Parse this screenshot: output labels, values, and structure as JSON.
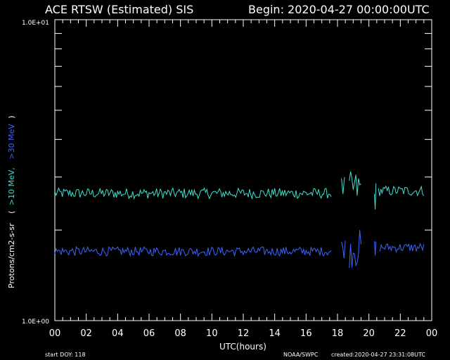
{
  "header": {
    "title": "ACE RTSW (Estimated) SIS",
    "begin": "Begin: 2020-04-27 00:00:00UTC"
  },
  "footer": {
    "start_doy": "start DOY:  118",
    "source": "NOAA/SWPC",
    "created": "created:2020-04-27 23:31:08UTC"
  },
  "axis_text": {
    "ylabel_main": "Protons/cm2-s-sr",
    "ylabel_open": "(",
    "ylabel_10": ">10 MeV,",
    "ylabel_30": ">30 MeV",
    "ylabel_close": ")",
    "ytick_top": "1.0E+01",
    "ytick_bottom": "1.0E+00",
    "xlabel": "UTC(hours)"
  },
  "colors": {
    "background": "#000000",
    "foreground": "#ffffff",
    "series_10mev": "#40e0d0",
    "series_30mev": "#3c64ff"
  },
  "chart_data": {
    "type": "line",
    "title": "ACE RTSW (Estimated) SIS",
    "xlabel": "UTC(hours)",
    "ylabel": "Protons/cm2-s-sr",
    "yscale": "log",
    "ylim": [
      1.0,
      10.0
    ],
    "xlim": [
      0,
      24
    ],
    "xticks": [
      "00",
      "02",
      "04",
      "06",
      "08",
      "10",
      "12",
      "14",
      "16",
      "18",
      "20",
      "22",
      "00"
    ],
    "series": [
      {
        "name": ">10 MeV",
        "color": "#40e0d0",
        "segments": [
          {
            "start": 0.0,
            "end": 17.6,
            "level": 2.65,
            "jitter": 0.04
          },
          {
            "start": 18.25,
            "end": 18.45,
            "level": 2.75,
            "jitter": 0.1
          },
          {
            "start": 18.75,
            "end": 19.5,
            "level": 2.75,
            "jitter": 0.14
          },
          {
            "start": 20.35,
            "end": 20.45,
            "level": 2.6,
            "jitter": 0.12
          },
          {
            "start": 20.6,
            "end": 23.5,
            "level": 2.7,
            "jitter": 0.04
          }
        ]
      },
      {
        "name": ">30 MeV",
        "color": "#3c64ff",
        "segments": [
          {
            "start": 0.0,
            "end": 17.6,
            "level": 1.7,
            "jitter": 0.035
          },
          {
            "start": 18.25,
            "end": 18.5,
            "level": 1.75,
            "jitter": 0.08
          },
          {
            "start": 18.75,
            "end": 19.5,
            "level": 1.75,
            "jitter": 0.15
          },
          {
            "start": 20.35,
            "end": 20.45,
            "level": 1.68,
            "jitter": 0.12
          },
          {
            "start": 20.7,
            "end": 23.5,
            "level": 1.75,
            "jitter": 0.035
          }
        ]
      }
    ]
  }
}
